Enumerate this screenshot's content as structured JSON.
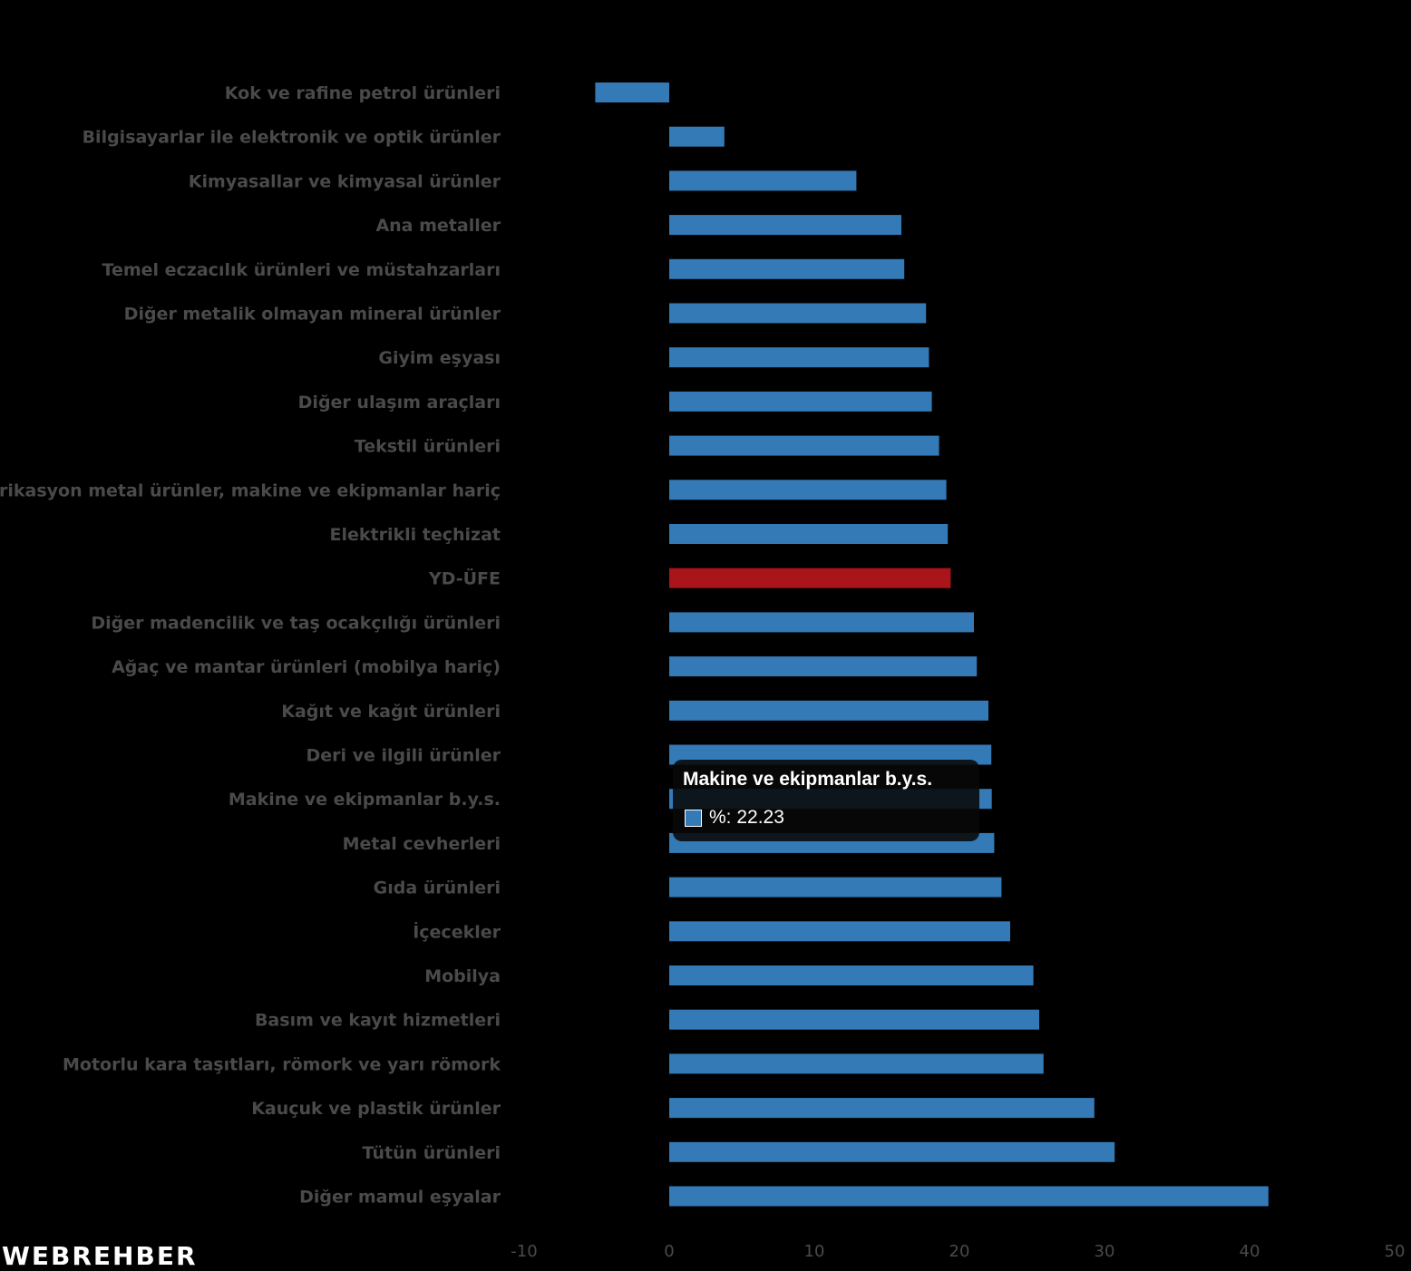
{
  "chart_data": {
    "type": "bar",
    "orientation": "horizontal",
    "categories": [
      "Kok ve rafine petrol ürünleri",
      "Bilgisayarlar ile elektronik ve optik ürünler",
      "Kimyasallar ve kimyasal ürünler",
      "Ana metaller",
      "Temel eczacılık ürünleri ve müstahzarları",
      "Diğer metalik olmayan mineral ürünler",
      "Giyim eşyası",
      "Diğer ulaşım araçları",
      "Tekstil ürünleri",
      "Fabrikasyon metal ürünler, makine ve ekipmanlar hariç",
      "Elektrikli teçhizat",
      "YD-ÜFE",
      "Diğer madencilik ve taş ocakçılığı ürünleri",
      "Ağaç ve mantar ürünleri (mobilya hariç)",
      "Kağıt ve kağıt ürünleri",
      "Deri ve ilgili ürünler",
      "Makine ve ekipmanlar b.y.s.",
      "Metal cevherleri",
      "Gıda ürünleri",
      "İçecekler",
      "Mobilya",
      "Basım ve kayıt hizmetleri",
      "Motorlu kara taşıtları, römork ve yarı römork",
      "Kauçuk ve plastik ürünler",
      "Tütün ürünleri",
      "Diğer mamul eşyalar"
    ],
    "values": [
      -5.1,
      3.8,
      12.9,
      16.0,
      16.2,
      17.7,
      17.9,
      18.1,
      18.6,
      19.1,
      19.2,
      19.4,
      21.0,
      21.2,
      22.0,
      22.2,
      22.23,
      22.4,
      22.9,
      23.5,
      25.1,
      25.5,
      25.8,
      29.3,
      30.7,
      41.3
    ],
    "highlight_category": "YD-ÜFE",
    "xlim": [
      -10,
      50
    ],
    "xticks": [
      "-10",
      "0",
      "10",
      "20",
      "30",
      "40",
      "50"
    ],
    "grid": false,
    "colors": {
      "bar": "#337ab7",
      "highlight": "#aa151b",
      "background": "#000000",
      "label": "#4a4a4a"
    }
  },
  "tooltip": {
    "title": "Makine ve ekipmanlar b.y.s.",
    "value_text": "%: 22.23",
    "swatch_color": "#337ab7"
  },
  "logo": {
    "text": "WEBREHBER"
  }
}
